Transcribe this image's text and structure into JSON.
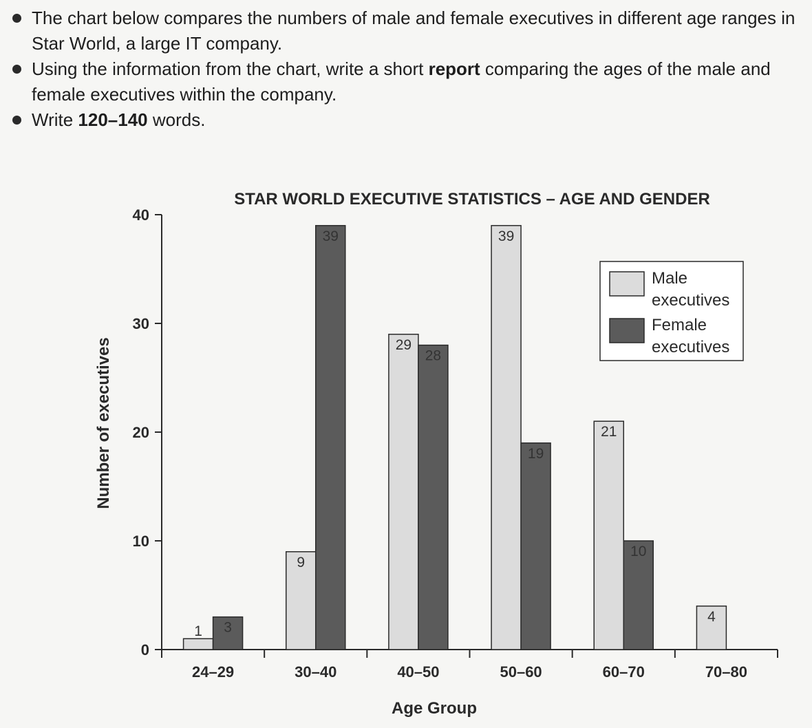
{
  "instructions": [
    {
      "parts": [
        {
          "text": "The chart below compares the numbers of male and female executives in different age ranges in Star World, a large IT company.",
          "bold": false
        }
      ]
    },
    {
      "parts": [
        {
          "text": "Using the information from the chart, write a short ",
          "bold": false
        },
        {
          "text": "report",
          "bold": true
        },
        {
          "text": " comparing the ages of the male and female executives within the company.",
          "bold": false
        }
      ]
    },
    {
      "parts": [
        {
          "text": "Write ",
          "bold": false
        },
        {
          "text": "120–140",
          "bold": true
        },
        {
          "text": " words.",
          "bold": false
        }
      ]
    }
  ],
  "chart_data": {
    "type": "bar",
    "title": "STAR WORLD EXECUTIVE STATISTICS – AGE AND GENDER",
    "xlabel": "Age Group",
    "ylabel": "Number of executives",
    "categories": [
      "24–29",
      "30–40",
      "40–50",
      "50–60",
      "60–70",
      "70–80"
    ],
    "series": [
      {
        "name": "Male executives",
        "legend_lines": [
          "Male",
          "executives"
        ],
        "color": "#dcdcdc",
        "values": [
          1,
          9,
          29,
          39,
          21,
          4
        ]
      },
      {
        "name": "Female executives",
        "legend_lines": [
          "Female",
          "executives"
        ],
        "color": "#5b5b5b",
        "values": [
          3,
          39,
          28,
          19,
          10,
          null
        ]
      }
    ],
    "ylim": [
      0,
      40
    ],
    "yticks": [
      0,
      10,
      20,
      30,
      40
    ],
    "grid": false,
    "legend_position": "top-right",
    "data_labels": true
  }
}
